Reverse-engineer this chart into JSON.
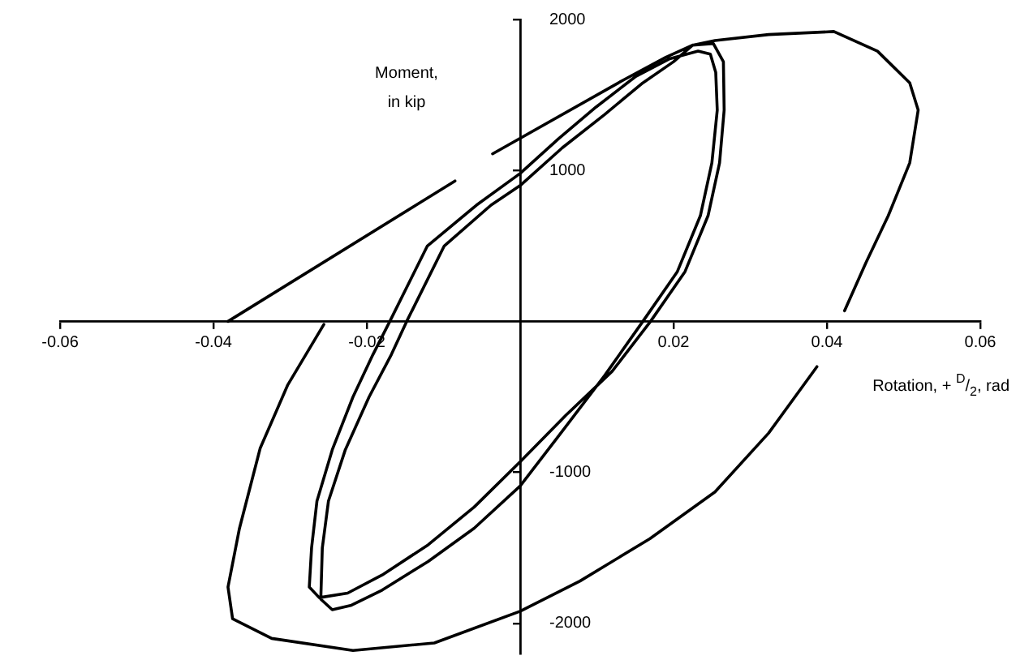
{
  "chart_data": {
    "type": "line",
    "xlabel": "Rotation, + $^{D}$/$_{2}$, rad",
    "ylabel": "Moment, in kip",
    "xlim": [
      -0.06,
      0.06
    ],
    "ylim": [
      -2200,
      2000
    ],
    "xticks": [
      -0.06,
      -0.04,
      -0.02,
      0.02,
      0.04,
      0.06
    ],
    "yticks": [
      -2000,
      -1000,
      1000,
      2000
    ],
    "grid": false,
    "legend": false,
    "marker": "none",
    "line_style": "solid",
    "series": [
      {
        "color": "#000000",
        "x": [
          -0.0381,
          -0.0085,
          -0.006,
          -0.0036,
          0.0135,
          0.019,
          0.0225,
          0.0252,
          0.0265,
          0.0266,
          0.026,
          0.0245,
          0.0215,
          0.017,
          0.012,
          0.006,
          0,
          -0.006,
          -0.012,
          -0.018,
          -0.0225,
          -0.0262,
          -0.0275,
          -0.0272,
          -0.0265,
          -0.0245,
          -0.0218,
          -0.0192,
          -0.017,
          -0.0121,
          -0.0057,
          0,
          0.005,
          0.0099,
          0.015,
          0.0195,
          0.0232,
          0.0248,
          0.0255,
          0.0257,
          0.025,
          0.0235,
          0.0205,
          0.016,
          0.011,
          0.005,
          0,
          -0.006,
          -0.012,
          -0.018,
          -0.022,
          -0.0245,
          -0.026,
          -0.0258,
          -0.025,
          -0.0228,
          -0.0197,
          -0.0168,
          -0.0148,
          -0.0099,
          -0.0038,
          0,
          0.0055,
          0.011,
          0.016,
          0.02,
          0.0225,
          0.0254,
          0.0324,
          0.0409,
          0.0466,
          0.0508,
          0.0519,
          0.0508,
          0.048,
          0.0451,
          0.0423,
          0.0405,
          0.0387,
          0.0324,
          0.0254,
          0.0169,
          0.0078,
          0,
          -0.0112,
          -0.0218,
          -0.0324,
          -0.0375,
          -0.0381,
          -0.0366,
          -0.0339,
          -0.0303,
          -0.0256
        ],
        "values": [
          0,
          930,
          null,
          1110,
          1600,
          1750,
          1830,
          1840,
          1720,
          1400,
          1050,
          700,
          330,
          0,
          -330,
          -620,
          -930,
          -1230,
          -1480,
          -1680,
          -1800,
          -1830,
          -1760,
          -1500,
          -1190,
          -850,
          -500,
          -220,
          0,
          500,
          770,
          980,
          1210,
          1420,
          1620,
          1740,
          1790,
          1770,
          1650,
          1400,
          1050,
          700,
          330,
          0,
          -360,
          -760,
          -1090,
          -1370,
          -1590,
          -1780,
          -1880,
          -1910,
          -1840,
          -1500,
          -1190,
          -850,
          -500,
          -220,
          0,
          500,
          770,
          900,
          1150,
          1370,
          1580,
          1720,
          1830,
          1860,
          1900,
          1920,
          1790,
          1580,
          1400,
          1050,
          700,
          390,
          70,
          null,
          -300,
          -740,
          -1130,
          -1440,
          -1720,
          -1920,
          -2130,
          -2180,
          -2100,
          -1970,
          -1760,
          -1370,
          -840,
          -420,
          -20
        ]
      }
    ]
  }
}
